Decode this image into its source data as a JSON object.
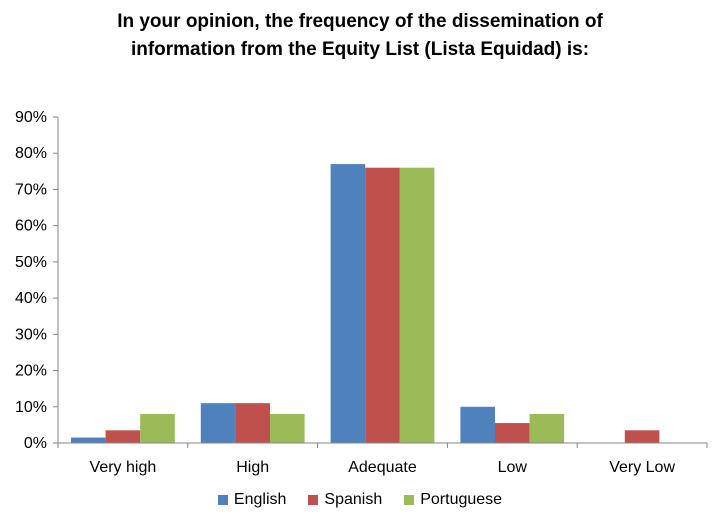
{
  "chart_data": {
    "type": "bar",
    "title_lines": [
      "In your opinion, the frequency of the dissemination of",
      "information from the Equity List (Lista Equidad) is:"
    ],
    "categories": [
      "Very high",
      "High",
      "Adequate",
      "Low",
      "Very Low"
    ],
    "series": [
      {
        "name": "English",
        "color": "#4F81BD",
        "values": [
          1.5,
          11,
          77,
          10,
          0
        ]
      },
      {
        "name": "Spanish",
        "color": "#C0504D",
        "values": [
          3.5,
          11,
          76,
          5.5,
          3.5
        ]
      },
      {
        "name": "Portuguese",
        "color": "#9BBB59",
        "values": [
          8,
          8,
          76,
          8,
          0
        ]
      }
    ],
    "ylim": [
      0,
      90
    ],
    "yticks": [
      "0%",
      "10%",
      "20%",
      "30%",
      "40%",
      "50%",
      "60%",
      "70%",
      "80%",
      "90%"
    ],
    "legend_position": "bottom",
    "grid": false
  }
}
